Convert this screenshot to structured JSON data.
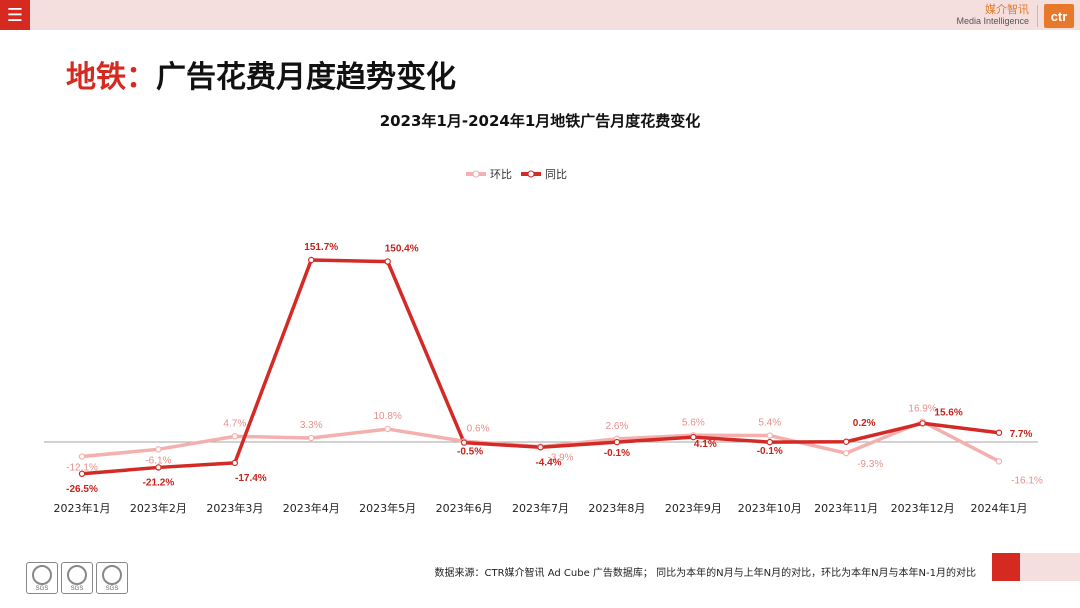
{
  "header": {
    "menu_icon": "hamburger-icon",
    "logo_cn": "媒介智讯",
    "logo_en": "Media Intelligence",
    "logo_mark": "ctr"
  },
  "page_title": {
    "accent": "地铁：",
    "rest": "广告花费月度趋势变化"
  },
  "chart_data": {
    "type": "line",
    "title": "2023年1月-2024年1月地铁广告月度花费变化",
    "categories": [
      "2023年1月",
      "2023年2月",
      "2023年3月",
      "2023年4月",
      "2023年5月",
      "2023年6月",
      "2023年7月",
      "2023年8月",
      "2023年9月",
      "2023年10月",
      "2023年11月",
      "2023年12月",
      "2024年1月"
    ],
    "series": [
      {
        "name": "环比",
        "color": "#f4b0ae",
        "values": [
          -12.1,
          -6.1,
          4.7,
          3.3,
          10.8,
          0.6,
          -3.9,
          2.6,
          5.6,
          5.4,
          -9.3,
          16.9,
          -16.1
        ],
        "labels": [
          "-12.1%",
          "-6.1%",
          "4.7%",
          "3.3%",
          "10.8%",
          "0.6%",
          "-3.9%",
          "2.6%",
          "5.6%",
          "5.4%",
          "-9.3%",
          "16.9%",
          "-16.1%"
        ]
      },
      {
        "name": "同比",
        "color": "#d42a25",
        "values": [
          -26.5,
          -21.2,
          -17.4,
          151.7,
          150.4,
          -0.5,
          -4.4,
          -0.1,
          4.1,
          -0.1,
          0.2,
          15.6,
          7.7
        ],
        "labels": [
          "-26.5%",
          "-21.2%",
          "-17.4%",
          "151.7%",
          "150.4%",
          "-0.5%",
          "-4.4%",
          "-0.1%",
          "4.1%",
          "-0.1%",
          "0.2%",
          "15.6%",
          "7.7%"
        ]
      }
    ],
    "ylim": [
      -40,
      170
    ],
    "grid": false,
    "legend": "top-center",
    "xlabel": "",
    "ylabel": ""
  },
  "footer": {
    "source": "数据来源：CTR媒介智讯 Ad Cube 广告数据库； 同比为本年的N月与上年N月的对比，环比为本年N月与本年N-1月的对比",
    "badge_label": "SGS"
  },
  "colors": {
    "brand_red": "#d62a20",
    "pink": "#f4dede",
    "logo_orange": "#e8782a"
  }
}
